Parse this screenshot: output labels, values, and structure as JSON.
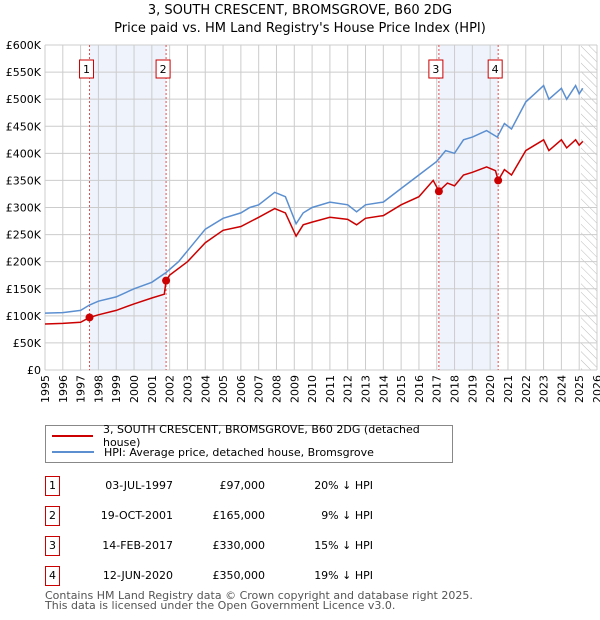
{
  "chart_data": {
    "type": "line",
    "title": "3, SOUTH CRESCENT, BROMSGROVE, B60 2DG",
    "subtitle": "Price paid vs. HM Land Registry's House Price Index (HPI)",
    "xlim": [
      1995,
      2026
    ],
    "ylim": [
      0,
      600000
    ],
    "x_ticks": [
      "1995",
      "1996",
      "1997",
      "1998",
      "1999",
      "2000",
      "2001",
      "2002",
      "2003",
      "2004",
      "2005",
      "2006",
      "2007",
      "2008",
      "2009",
      "2010",
      "2011",
      "2012",
      "2013",
      "2014",
      "2015",
      "2016",
      "2017",
      "2018",
      "2019",
      "2020",
      "2021",
      "2022",
      "2023",
      "2024",
      "2025",
      "2026"
    ],
    "y_ticks": [
      "£0",
      "£50K",
      "£100K",
      "£150K",
      "£200K",
      "£250K",
      "£300K",
      "£350K",
      "£400K",
      "£450K",
      "£500K",
      "£550K",
      "£600K"
    ],
    "series": [
      {
        "name": "3, SOUTH CRESCENT, BROMSGROVE, B60 2DG (detached house)",
        "color": "#cc0000",
        "x": [
          1995,
          1996,
          1997,
          1997.5,
          1998,
          1999,
          2000,
          2001,
          2001.7,
          2001.8,
          2002,
          2003,
          2004,
          2005,
          2006,
          2007,
          2007.9,
          2008.5,
          2009.1,
          2009.5,
          2010,
          2011,
          2012,
          2012.5,
          2013,
          2014,
          2015,
          2016,
          2016.8,
          2017.12,
          2017.6,
          2018,
          2018.5,
          2019,
          2019.8,
          2020.3,
          2020.45,
          2020.8,
          2021.2,
          2022,
          2022.5,
          2023,
          2023.3,
          2024,
          2024.3,
          2024.8,
          2025,
          2025.2
        ],
        "y": [
          85,
          86,
          88,
          97,
          102,
          110,
          122,
          133,
          140,
          165,
          175,
          200,
          235,
          258,
          265,
          282,
          298,
          290,
          247,
          268,
          273,
          282,
          278,
          268,
          280,
          285,
          305,
          320,
          350,
          330,
          345,
          340,
          360,
          365,
          375,
          368,
          350,
          370,
          360,
          405,
          415,
          425,
          405,
          425,
          410,
          425,
          415,
          422
        ]
      },
      {
        "name": "HPI: Average price, detached house, Bromsgrove",
        "color": "#5b8fd0",
        "x": [
          1995,
          1996,
          1997,
          1997.5,
          1998,
          1999,
          2000,
          2001,
          2001.8,
          2002.5,
          2003,
          2004,
          2005,
          2006,
          2006.5,
          2007,
          2007.9,
          2008.5,
          2009.1,
          2009.5,
          2010,
          2011,
          2012,
          2012.5,
          2013,
          2014,
          2015,
          2016,
          2017,
          2017.5,
          2018,
          2018.5,
          2019,
          2019.8,
          2020.4,
          2020.8,
          2021.2,
          2022,
          2022.5,
          2023,
          2023.3,
          2024,
          2024.3,
          2024.8,
          2025,
          2025.2
        ],
        "y": [
          105,
          106,
          110,
          120,
          127,
          135,
          150,
          162,
          180,
          200,
          220,
          260,
          280,
          290,
          300,
          305,
          328,
          320,
          270,
          290,
          300,
          310,
          305,
          292,
          305,
          310,
          335,
          360,
          385,
          405,
          400,
          425,
          430,
          442,
          430,
          455,
          445,
          495,
          510,
          525,
          500,
          520,
          500,
          525,
          510,
          520
        ]
      }
    ],
    "y_units": "thousands GBP",
    "sales": [
      {
        "label": "1",
        "x": 1997.5,
        "y": 97
      },
      {
        "label": "2",
        "x": 2001.8,
        "y": 165
      },
      {
        "label": "3",
        "x": 2017.12,
        "y": 330
      },
      {
        "label": "4",
        "x": 2020.45,
        "y": 350
      }
    ],
    "shaded_ranges": [
      [
        1997.5,
        2001.8
      ],
      [
        2017.12,
        2020.45
      ]
    ],
    "forecast_from": 2025.1,
    "grid": true
  },
  "legend": {
    "property": "3, SOUTH CRESCENT, BROMSGROVE, B60 2DG (detached house)",
    "hpi": "HPI: Average price, detached house, Bromsgrove"
  },
  "transactions": [
    {
      "num": "1",
      "date": "03-JUL-1997",
      "price": "£97,000",
      "hpi": "20% ↓ HPI"
    },
    {
      "num": "2",
      "date": "19-OCT-2001",
      "price": "£165,000",
      "hpi": "9% ↓ HPI"
    },
    {
      "num": "3",
      "date": "14-FEB-2017",
      "price": "£330,000",
      "hpi": "15% ↓ HPI"
    },
    {
      "num": "4",
      "date": "12-JUN-2020",
      "price": "£350,000",
      "hpi": "19% ↓ HPI"
    }
  ],
  "footer": {
    "line1": "Contains HM Land Registry data © Crown copyright and database right 2025.",
    "line2": "This data is licensed under the Open Government Licence v3.0."
  }
}
